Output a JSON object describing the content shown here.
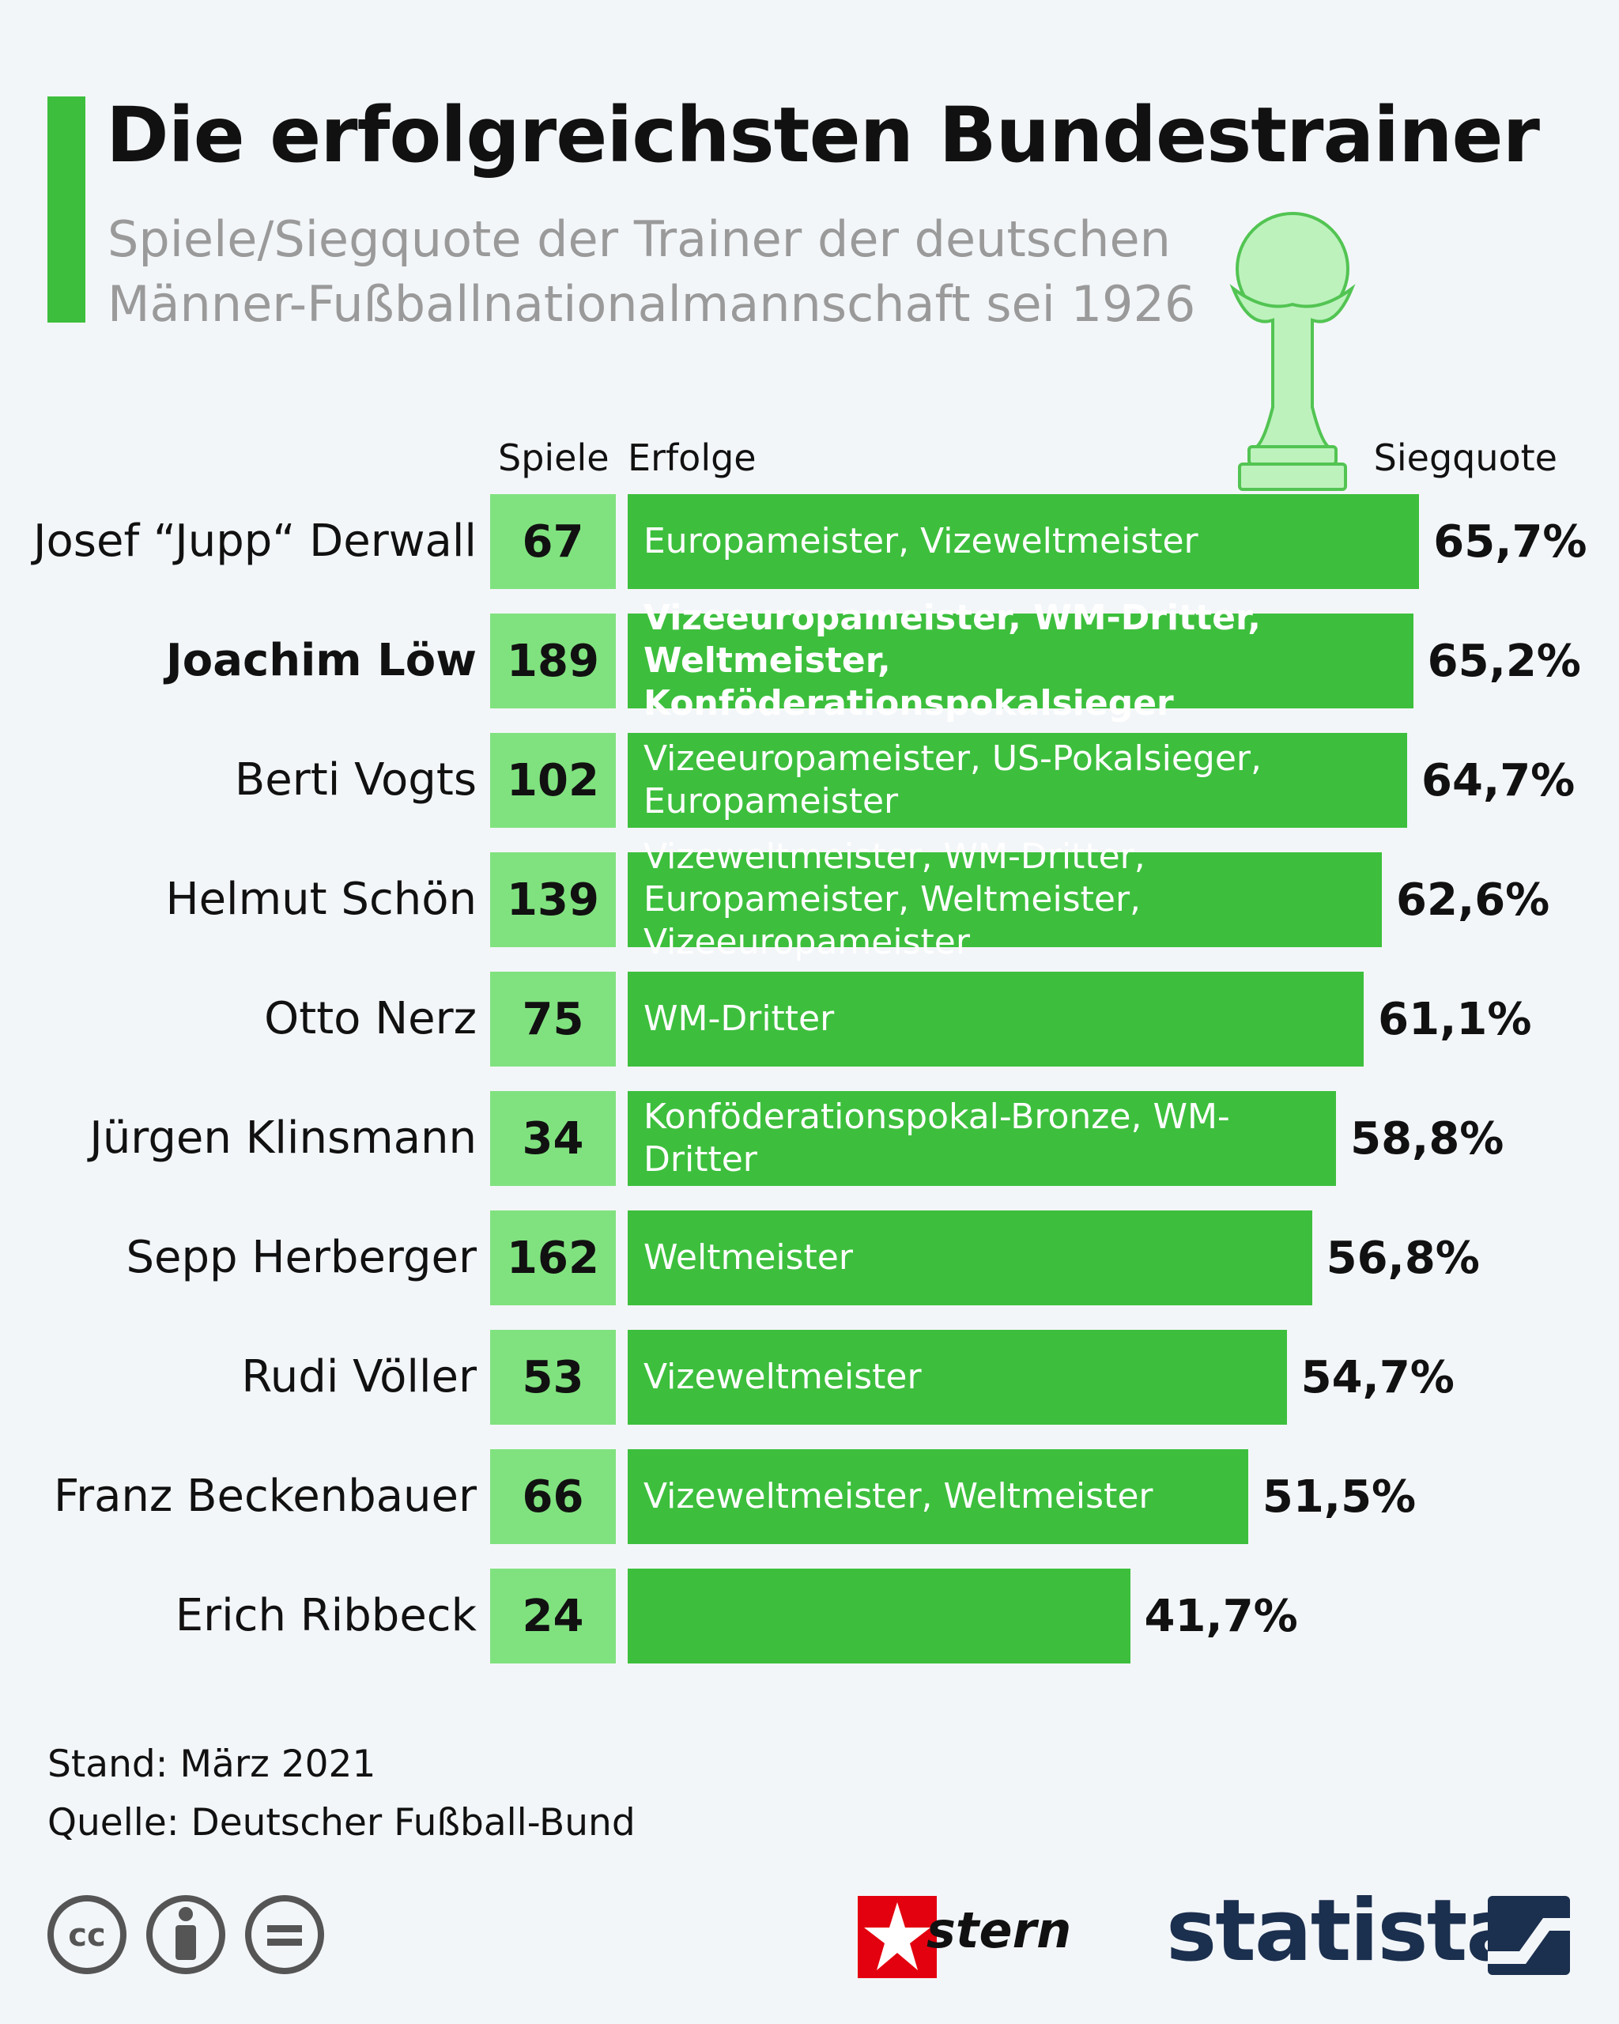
{
  "chart_data": {
    "type": "bar",
    "title": "Die erfolgreichsten Bundestrainer",
    "subtitle": "Spiele/Siegquote der Trainer der deutschen Männer-Fußballnationalmannschaft sei 1926",
    "games_header": "Spiele",
    "achievements_header": "Erfolge",
    "categories": [
      "Josef “Jupp“ Derwall",
      "Joachim Löw",
      "Berti Vogts",
      "Helmut Schön",
      "Otto Nerz",
      "Jürgen Klinsmann",
      "Sepp Herberger",
      "Rudi Völler",
      "Franz Beckenbauer",
      "Erich Ribbeck"
    ],
    "games": [
      67,
      189,
      102,
      139,
      75,
      34,
      162,
      53,
      66,
      24
    ],
    "achievements": [
      "Europameister, Vizeweltmeister",
      "Vizeeuropameister, WM-Dritter, Weltmeister, Konföderationspokalsieger",
      "Vizeeuropameister, US-Pokalsieger, Europameister",
      "Vizeweltmeister, WM-Dritter, Europameister, Weltmeister, Vizeeuropameister",
      "WM-Dritter",
      "Konföderationspokal-Bronze, WM-Dritter",
      "Weltmeister",
      "Vizeweltmeister",
      "Vizeweltmeister, Weltmeister",
      null
    ],
    "series": [
      {
        "name": "Siegquote",
        "color": "#3dbf3d",
        "values": [
          65.7,
          65.2,
          64.7,
          62.6,
          61.1,
          58.8,
          56.8,
          54.7,
          51.5,
          41.7
        ],
        "value_labels": [
          "65,7%",
          "65,2%",
          "64,7%",
          "62,6%",
          "61,1%",
          "58,8%",
          "56,8%",
          "54,7%",
          "51,5%",
          "41,7%"
        ]
      }
    ],
    "xlim": [
      0,
      100
    ],
    "highlight_index": 1
  },
  "footer": {
    "date": "Stand: März 2021",
    "source": "Quelle: Deutscher Fußball-Bund",
    "brands": [
      "stern",
      "statista"
    ]
  }
}
